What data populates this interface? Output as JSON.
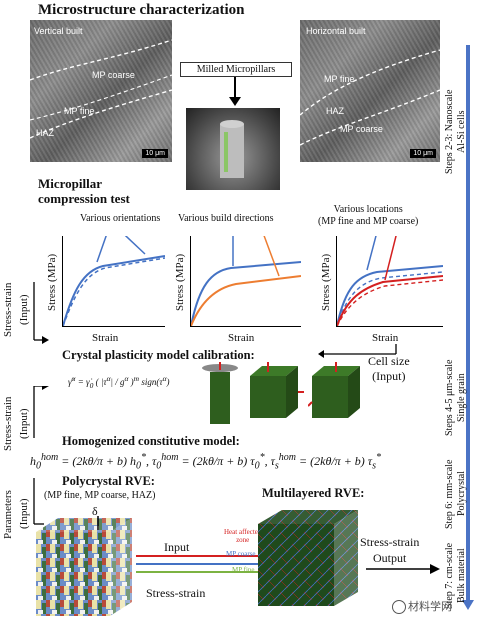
{
  "header": {
    "title": "Microstructure characterization"
  },
  "microstructure": {
    "left_panel": {
      "label": "Vertical built",
      "mp_coarse": "MP coarse",
      "mp_fine": "MP fine",
      "haz": "HAZ",
      "scale": "10 μm"
    },
    "center": {
      "label": "Milled Micropillars"
    },
    "right_panel": {
      "label": "Horizontal built",
      "mp_fine": "MP fine",
      "haz": "HAZ",
      "mp_coarse": "MP coarse",
      "scale": "10 μm"
    }
  },
  "compression": {
    "title_line1": "Micropillar",
    "title_line2": "compression test",
    "plot1": {
      "annotation": "Various orientations",
      "ylabel": "Stress (MPa)",
      "xlabel": "Strain"
    },
    "plot2": {
      "annotation": "Various build directions",
      "ylabel": "Stress (MPa)",
      "xlabel": "Strain"
    },
    "plot3": {
      "annotation_line1": "Various locations",
      "annotation_line2": "(MP fine and MP coarse)",
      "ylabel": "Stress (MPa)",
      "xlabel": "Strain"
    }
  },
  "left_labels": {
    "stress_strain_1": "Stress-strain",
    "input_1": "(Input)",
    "stress_strain_2": "Stress-strain",
    "input_2": "(Input)",
    "parameters": "Parameters",
    "input_3": "(Input)"
  },
  "calibration": {
    "title": "Crystal plasticity model calibration:",
    "cell_size_line1": "Cell size",
    "cell_size_line2": "(Input)"
  },
  "homogenized": {
    "title": "Homogenized constitutive model:"
  },
  "rve": {
    "poly_title": "Polycrystal RVE:",
    "poly_sub": "(MP fine, MP coarse, HAZ)",
    "delta": "δ",
    "input_label": "Input",
    "stress_strain_label": "Stress-strain",
    "multi_title": "Multilayered RVE:",
    "haz_legend_line1": "Heat affected",
    "haz_legend_line2": "zone",
    "mp_coarse_legend": "MP coarse",
    "mp_fine_legend": "MP fine",
    "output_line1": "Stress-strain",
    "output_line2": "Output"
  },
  "steps": {
    "s23_line1": "Steps 2-3: Nanoscale",
    "s23_line2": "Al-Si cells",
    "s45_line1": "Steps 4-5 μm-scale",
    "s45_line2": "Single grain",
    "s6_line1": "Step 6: mm-scale",
    "s6_line2": "Polycrystal",
    "s7_line1": "Step 7: cm-scale",
    "s7_line2": "Bulk material"
  },
  "watermark": {
    "text": "材料学网"
  },
  "colors": {
    "blue": "#4472c4",
    "orange": "#ed7d31",
    "red": "#d42020",
    "green_cube": "#2e5e1e"
  }
}
